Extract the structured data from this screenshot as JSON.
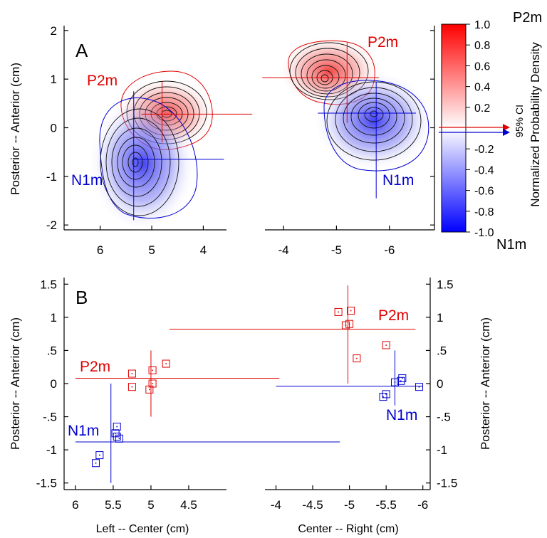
{
  "chart_data": [
    {
      "panel": "A",
      "type": "contour",
      "title": "A",
      "ylabel": "Posterior -- Anterior (cm)",
      "y_ticks": [
        "-2",
        "-1",
        "0",
        "1",
        "2"
      ],
      "ylim": [
        -2.1,
        2.1
      ],
      "left_x_ticks": [
        "6",
        "5",
        "4"
      ],
      "left_xlim": [
        6.7,
        3.55
      ],
      "right_x_ticks": [
        "-4",
        "-5",
        "-6"
      ],
      "right_xlim": [
        -3.65,
        -6.85
      ],
      "colorbar": {
        "label": "Normalized Probability Density",
        "ticks": [
          "1.0",
          "0.8",
          "0.6",
          "0.4",
          "0.2",
          "-0.2",
          "-0.4",
          "-0.6",
          "-0.8",
          "-1.0"
        ],
        "top_label": "P2m",
        "bottom_label": "N1m",
        "ci_label": "95% CI",
        "top_color": "#ff0000",
        "bottom_color": "#0000ff"
      },
      "series": [
        {
          "name": "P2m",
          "hemisphere": "left",
          "center": [
            4.8,
            0.28
          ],
          "color": "#e00000",
          "ci_x": [
            5.2,
            3.05
          ],
          "ci_y": [
            -0.3,
            0.95
          ]
        },
        {
          "name": "N1m",
          "hemisphere": "left",
          "center": [
            5.35,
            -0.65
          ],
          "color": "#0000d0",
          "ci_x": [
            5.35,
            3.6
          ],
          "ci_y": [
            -1.9,
            0.75
          ]
        },
        {
          "name": "P2m",
          "hemisphere": "right",
          "center": [
            -5.2,
            1.03
          ],
          "color": "#e00000",
          "ci_x": [
            -3.6,
            -5.8
          ],
          "ci_y": [
            0.1,
            1.75
          ]
        },
        {
          "name": "N1m",
          "hemisphere": "right",
          "center": [
            -5.75,
            0.3
          ],
          "color": "#0000d0",
          "ci_x": [
            -4.65,
            -6.5
          ],
          "ci_y": [
            -1.45,
            0.95
          ]
        }
      ]
    },
    {
      "panel": "B",
      "type": "scatter",
      "title": "B",
      "ylabel_left": "Posterior -- Anterior (cm)",
      "ylabel_right": "Posterior -- Anterior (cm)",
      "y_ticks": [
        "1.5",
        "1",
        ".5",
        "0",
        "-.5",
        "-1",
        "-1.5"
      ],
      "ylim": [
        -1.6,
        1.6
      ],
      "left": {
        "xlabel": "Left -- Center (cm)",
        "x_ticks": [
          "6",
          "5.5",
          "5",
          "4.5"
        ],
        "xlim": [
          6.15,
          4.0
        ],
        "series": [
          {
            "name": "P2m",
            "color": "#e00000",
            "points": [
              [
                5.25,
                0.15
              ],
              [
                5.25,
                -0.05
              ],
              [
                5.02,
                -0.09
              ],
              [
                4.98,
                0.2
              ],
              [
                4.98,
                0.0
              ],
              [
                4.8,
                0.3
              ]
            ],
            "ci_x": [
              6.0,
              3.3
            ],
            "ci_y": [
              -0.5,
              0.5
            ],
            "center": [
              5.0,
              0.08
            ]
          },
          {
            "name": "N1m",
            "color": "#0000d0",
            "points": [
              [
                5.45,
                -0.65
              ],
              [
                5.47,
                -0.75
              ],
              [
                5.45,
                -0.8
              ],
              [
                5.42,
                -0.83
              ],
              [
                5.68,
                -1.08
              ],
              [
                5.73,
                -1.2
              ]
            ],
            "ci_x": [
              6.0,
              2.5
            ],
            "ci_y": [
              -1.5,
              0.0
            ],
            "center": [
              5.53,
              -0.88
            ]
          }
        ]
      },
      "right": {
        "xlabel": "Center -- Right (cm)",
        "x_ticks": [
          "-4",
          "-4.5",
          "-5",
          "-5.5",
          "-6"
        ],
        "xlim": [
          -3.85,
          -6.1
        ],
        "series": [
          {
            "name": "P2m",
            "color": "#e00000",
            "points": [
              [
                -4.85,
                1.08
              ],
              [
                -5.02,
                1.1
              ],
              [
                -4.95,
                0.88
              ],
              [
                -5.0,
                0.9
              ],
              [
                -5.5,
                0.58
              ],
              [
                -5.1,
                0.38
              ]
            ],
            "ci_x": [
              -2.55,
              -5.9
            ],
            "ci_y": [
              0.0,
              1.48
            ],
            "center": [
              -4.98,
              0.82
            ]
          },
          {
            "name": "N1m",
            "color": "#0000d0",
            "points": [
              [
                -5.62,
                0.02
              ],
              [
                -5.7,
                0.04
              ],
              [
                -5.72,
                0.08
              ],
              [
                -5.95,
                -0.05
              ],
              [
                -5.5,
                -0.16
              ],
              [
                -5.46,
                -0.2
              ]
            ],
            "ci_x": [
              -4.0,
              -6.0
            ],
            "ci_y": [
              -0.33,
              0.5
            ],
            "center": [
              -5.62,
              -0.04
            ]
          }
        ]
      }
    }
  ]
}
